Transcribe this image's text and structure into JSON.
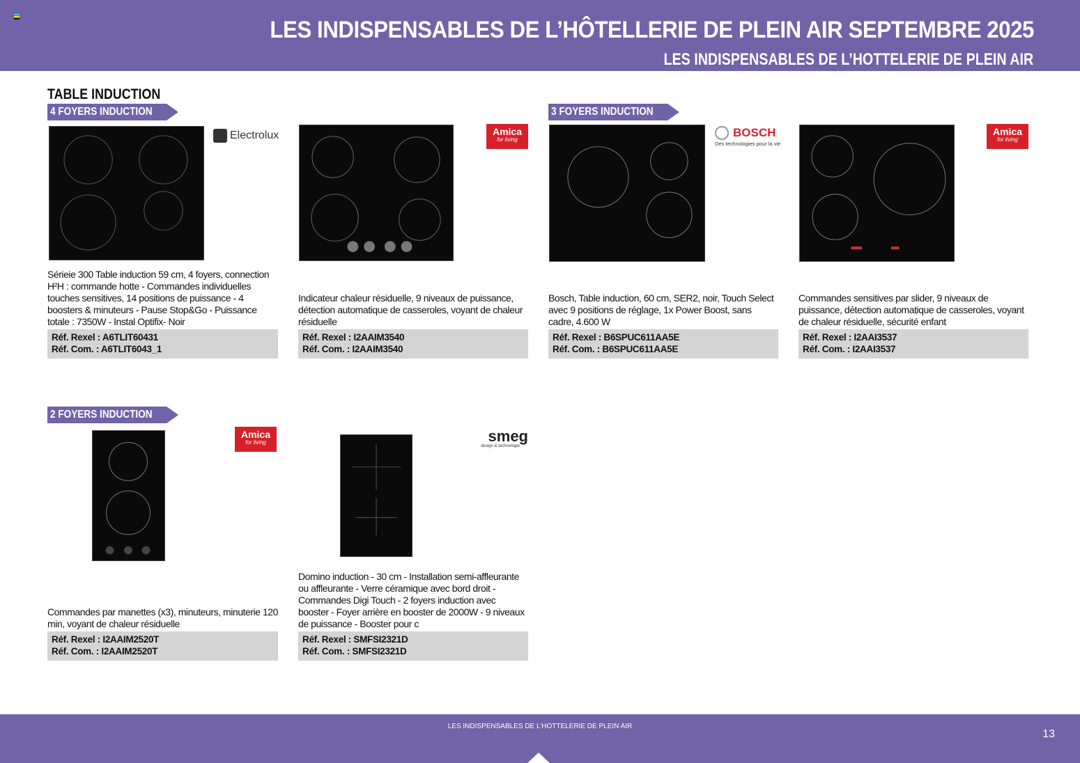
{
  "header": {
    "title": "LES INDISPENSABLES DE L’HÔTELLERIE DE PLEIN AIR SEPTEMBRE 2025",
    "subtitle": "LES INDISPENSABLES DE L’HOTTELERIE DE PLEIN AIR"
  },
  "section_title": "TABLE INDUCTION",
  "tags": {
    "four": "4 FOYERS INDUCTION",
    "three": "3 FOYERS INDUCTION",
    "two": "2 FOYERS INDUCTION"
  },
  "products": [
    {
      "brand": "Electrolux",
      "desc": "Sérieie 300 Table induction 59 cm, 4 foyers, connection H²H : commande hotte - Commandes individuelles touches sensitives, 14 positions de puissance - 4 boosters & minuteurs - Pause Stop&Go - Puissance totale : 7350W - Instal Optifix- Noir",
      "ref_rexel": "Réf. Rexel : A6TLIT60431",
      "ref_com": "Réf. Com. : A6TLIT6043_1"
    },
    {
      "brand": "Amica",
      "brand_tagline": "for living",
      "desc": "Indicateur chaleur résiduelle, 9 niveaux de puissance, détection automatique de casseroles, voyant de chaleur résiduelle",
      "ref_rexel": "Réf. Rexel : I2AAIM3540",
      "ref_com": "Réf. Com. : I2AAIM3540"
    },
    {
      "brand": "BOSCH",
      "brand_tagline": "Des technologies pour la vie",
      "desc": "Bosch, Table induction, 60 cm, SER2, noir, Touch Select avec 9 positions de réglage, 1x Power Boost, sans cadre, 4.600 W",
      "ref_rexel": "Réf. Rexel : B6SPUC611AA5E",
      "ref_com": "Réf. Com. : B6SPUC611AA5E"
    },
    {
      "brand": "Amica",
      "brand_tagline": "for living",
      "desc": "Commandes sensitives par slider, 9 niveaux de puissance, détection automatique de casseroles, voyant de chaleur résiduelle, sécurité enfant",
      "ref_rexel": "Réf. Rexel : I2AAI3537",
      "ref_com": "Réf. Com. : I2AAI3537"
    },
    {
      "brand": "Amica",
      "brand_tagline": "for living",
      "desc": "Commandes par manettes (x3), minuteurs, minuterie 120 min, voyant de chaleur résiduelle",
      "ref_rexel": "Réf. Rexel : I2AAIM2520T",
      "ref_com": "Réf. Com. : I2AAIM2520T"
    },
    {
      "brand": "smeg",
      "brand_tagline": "design & technologie",
      "desc": "Domino induction - 30 cm - Installation semi-affleurante ou affleurante - Verre céramique avec bord droit - Commandes Digi Touch - 2 foyers induction avec booster - Foyer arrière en booster de 2000W - 9 niveaux de puissance - Booster pour c",
      "ref_rexel": "Réf. Rexel : SMFSI2321D",
      "ref_com": "Réf. Com. : SMFSI2321D"
    }
  ],
  "footer": {
    "text": "LES INDISPENSABLES DE L’HOTTELERIE DE PLEIN AIR",
    "page": "13"
  }
}
